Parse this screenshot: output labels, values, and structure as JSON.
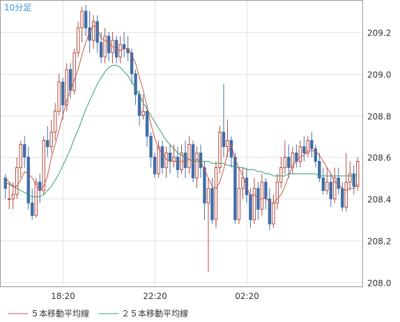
{
  "chart_data": {
    "type": "candlestick",
    "timeframe_label": "10分足",
    "x_tick_labels": [
      "18:20",
      "22:20",
      "02:20"
    ],
    "x_tick_candle_index": [
      15,
      39,
      63
    ],
    "y_ticks": [
      208.0,
      208.2,
      208.4,
      208.6,
      208.8,
      209.0,
      209.2
    ],
    "ylim": [
      207.98,
      209.35
    ],
    "grid": true,
    "legend_position": "bottom",
    "legend": [
      {
        "name": "５本移動平均線",
        "color": "#c8554a"
      },
      {
        "name": "２５本移動平均線",
        "color": "#2f9e6a"
      }
    ],
    "colors": {
      "up_candle": "#b4483d",
      "down_candle": "#3e6ea8",
      "ma5": "#c8554a",
      "ma25": "#2f9e6a",
      "label_blue": "#3a8fd6"
    },
    "candles": [
      [
        208.5,
        208.45,
        208.52,
        208.4
      ],
      [
        208.4,
        208.4,
        208.48,
        208.35
      ],
      [
        208.4,
        208.42,
        208.48,
        208.35
      ],
      [
        208.42,
        208.55,
        208.6,
        208.4
      ],
      [
        208.55,
        208.66,
        208.68,
        208.5
      ],
      [
        208.66,
        208.6,
        208.7,
        208.55
      ],
      [
        208.6,
        208.38,
        208.65,
        208.35
      ],
      [
        208.38,
        208.32,
        208.45,
        208.3
      ],
      [
        208.32,
        208.48,
        208.5,
        208.31
      ],
      [
        208.48,
        208.44,
        208.52,
        208.38
      ],
      [
        208.44,
        208.68,
        208.7,
        208.42
      ],
      [
        208.68,
        208.65,
        208.75,
        208.6
      ],
      [
        208.65,
        208.72,
        208.78,
        208.62
      ],
      [
        208.72,
        208.82,
        208.86,
        208.68
      ],
      [
        208.82,
        208.96,
        209.0,
        208.8
      ],
      [
        208.96,
        208.85,
        208.98,
        208.78
      ],
      [
        208.85,
        209.02,
        209.05,
        208.82
      ],
      [
        209.02,
        208.92,
        209.05,
        208.88
      ],
      [
        208.92,
        209.1,
        209.12,
        208.9
      ],
      [
        209.1,
        209.22,
        209.25,
        209.08
      ],
      [
        209.22,
        209.3,
        209.32,
        209.15
      ],
      [
        209.3,
        209.22,
        209.33,
        209.18
      ],
      [
        209.22,
        209.16,
        209.3,
        209.1
      ],
      [
        209.16,
        209.25,
        209.28,
        209.12
      ],
      [
        209.25,
        209.15,
        209.28,
        209.1
      ],
      [
        209.15,
        209.08,
        209.2,
        209.05
      ],
      [
        209.08,
        209.18,
        209.22,
        209.05
      ],
      [
        209.18,
        209.1,
        209.2,
        209.06
      ],
      [
        209.1,
        209.16,
        209.2,
        209.05
      ],
      [
        209.16,
        209.08,
        209.18,
        209.05
      ],
      [
        209.08,
        209.14,
        209.18,
        209.05
      ],
      [
        209.14,
        209.12,
        209.2,
        209.08
      ],
      [
        209.12,
        209.1,
        209.18,
        209.06
      ],
      [
        209.1,
        209.0,
        209.12,
        208.95
      ],
      [
        209.0,
        208.9,
        209.02,
        208.85
      ],
      [
        208.9,
        208.8,
        208.92,
        208.75
      ],
      [
        208.8,
        208.82,
        208.9,
        208.78
      ],
      [
        208.82,
        208.7,
        208.85,
        208.65
      ],
      [
        208.7,
        208.6,
        208.72,
        208.55
      ],
      [
        208.6,
        208.52,
        208.62,
        208.5
      ],
      [
        208.52,
        208.65,
        208.68,
        208.5
      ],
      [
        208.65,
        208.55,
        208.68,
        208.52
      ],
      [
        208.55,
        208.62,
        208.65,
        208.5
      ],
      [
        208.62,
        208.58,
        208.66,
        208.52
      ],
      [
        208.58,
        208.6,
        208.66,
        208.55
      ],
      [
        208.6,
        208.54,
        208.65,
        208.5
      ],
      [
        208.54,
        208.62,
        208.66,
        208.52
      ],
      [
        208.62,
        208.55,
        208.68,
        208.5
      ],
      [
        208.55,
        208.66,
        208.7,
        208.52
      ],
      [
        208.66,
        208.5,
        208.68,
        208.48
      ],
      [
        208.5,
        208.62,
        208.65,
        208.45
      ],
      [
        208.62,
        208.55,
        208.66,
        208.5
      ],
      [
        208.55,
        208.38,
        208.58,
        208.3
      ],
      [
        208.38,
        208.45,
        208.5,
        208.05
      ],
      [
        208.45,
        208.3,
        208.5,
        208.28
      ],
      [
        208.3,
        208.55,
        208.58,
        208.26
      ],
      [
        208.55,
        208.72,
        208.75,
        208.52
      ],
      [
        208.72,
        208.65,
        208.95,
        208.6
      ],
      [
        208.65,
        208.68,
        208.78,
        208.6
      ],
      [
        208.68,
        208.6,
        208.7,
        208.55
      ],
      [
        208.6,
        208.3,
        208.62,
        208.28
      ],
      [
        208.3,
        208.45,
        208.55,
        208.28
      ],
      [
        208.45,
        208.5,
        208.55,
        208.4
      ],
      [
        208.5,
        208.42,
        208.55,
        208.38
      ],
      [
        208.42,
        208.3,
        208.45,
        208.26
      ],
      [
        208.3,
        208.45,
        208.5,
        208.28
      ],
      [
        208.45,
        208.35,
        208.48,
        208.3
      ],
      [
        208.35,
        208.48,
        208.52,
        208.32
      ],
      [
        208.48,
        208.4,
        208.5,
        208.35
      ],
      [
        208.4,
        208.28,
        208.45,
        208.25
      ],
      [
        208.28,
        208.38,
        208.42,
        208.26
      ],
      [
        208.38,
        208.48,
        208.52,
        208.35
      ],
      [
        208.48,
        208.55,
        208.6,
        208.45
      ],
      [
        208.55,
        208.6,
        208.68,
        208.52
      ],
      [
        208.6,
        208.55,
        208.66,
        208.5
      ],
      [
        208.55,
        208.62,
        208.65,
        208.52
      ],
      [
        208.62,
        208.58,
        208.66,
        208.55
      ],
      [
        208.58,
        208.65,
        208.68,
        208.55
      ],
      [
        208.65,
        208.62,
        208.7,
        208.58
      ],
      [
        208.62,
        208.68,
        208.7,
        208.6
      ],
      [
        208.68,
        208.64,
        208.72,
        208.6
      ],
      [
        208.64,
        208.58,
        208.66,
        208.55
      ],
      [
        208.58,
        208.5,
        208.62,
        208.48
      ],
      [
        208.5,
        208.44,
        208.55,
        208.42
      ],
      [
        208.44,
        208.48,
        208.55,
        208.42
      ],
      [
        208.48,
        208.4,
        208.52,
        208.36
      ],
      [
        208.4,
        208.5,
        208.55,
        208.38
      ],
      [
        208.5,
        208.45,
        208.55,
        208.42
      ],
      [
        208.45,
        208.36,
        208.48,
        208.34
      ],
      [
        208.36,
        208.48,
        208.62,
        208.34
      ],
      [
        208.48,
        208.52,
        208.58,
        208.44
      ],
      [
        208.52,
        208.46,
        208.56,
        208.42
      ],
      [
        208.46,
        208.58,
        208.6,
        208.44
      ]
    ],
    "ma5": [
      208.5,
      208.48,
      208.46,
      208.46,
      208.49,
      208.53,
      208.52,
      208.5,
      208.47,
      208.44,
      208.46,
      208.51,
      208.6,
      208.66,
      208.73,
      208.8,
      208.87,
      208.92,
      208.97,
      209.02,
      209.09,
      209.15,
      209.2,
      209.23,
      209.22,
      209.17,
      209.16,
      209.15,
      209.13,
      209.12,
      209.11,
      209.12,
      209.12,
      209.09,
      209.05,
      208.98,
      208.92,
      208.84,
      208.76,
      208.69,
      208.64,
      208.62,
      208.59,
      208.58,
      208.58,
      208.58,
      208.58,
      208.58,
      208.59,
      208.58,
      208.59,
      208.58,
      208.54,
      208.5,
      208.46,
      208.45,
      208.48,
      208.54,
      208.62,
      208.66,
      208.59,
      208.55,
      208.51,
      208.46,
      208.41,
      208.42,
      208.4,
      208.4,
      208.41,
      208.38,
      208.38,
      208.4,
      208.42,
      208.46,
      208.51,
      208.56,
      208.58,
      208.6,
      208.61,
      208.63,
      208.63,
      208.63,
      208.61,
      208.58,
      208.55,
      208.52,
      208.48,
      208.47,
      208.45,
      208.44,
      208.45,
      208.45,
      208.47
    ],
    "ma25": [
      208.48,
      208.47,
      208.46,
      208.45,
      208.44,
      208.43,
      208.42,
      208.41,
      208.41,
      208.41,
      208.42,
      208.44,
      208.46,
      208.49,
      208.52,
      208.56,
      208.6,
      208.64,
      208.69,
      208.73,
      208.78,
      208.83,
      208.87,
      208.91,
      208.95,
      208.98,
      209.01,
      209.03,
      209.04,
      209.04,
      209.03,
      209.01,
      208.99,
      208.96,
      208.93,
      208.9,
      208.86,
      208.83,
      208.8,
      208.77,
      208.74,
      208.71,
      208.68,
      208.66,
      208.64,
      208.62,
      208.61,
      208.6,
      208.59,
      208.58,
      208.58,
      208.58,
      208.58,
      208.58,
      208.57,
      208.57,
      208.57,
      208.57,
      208.56,
      208.56,
      208.55,
      208.55,
      208.55,
      208.54,
      208.54,
      208.54,
      208.53,
      208.53,
      208.52,
      208.52,
      208.51,
      208.51,
      208.51,
      208.51,
      208.52,
      208.52,
      208.52,
      208.52,
      208.52,
      208.52,
      208.52,
      208.52,
      208.51,
      208.51,
      208.51,
      208.51,
      208.51,
      208.51,
      208.51,
      208.51,
      208.51,
      208.51,
      208.51
    ]
  }
}
